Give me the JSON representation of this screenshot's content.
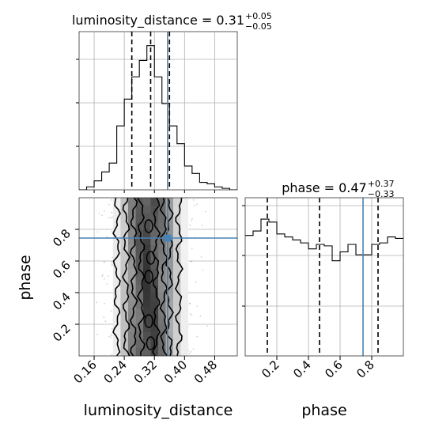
{
  "chart_data": {
    "type": "corner",
    "parameters": [
      "luminosity_distance",
      "phase"
    ],
    "titles": [
      {
        "base": "luminosity_distance = 0.31",
        "sup": "+0.05",
        "sub": "−0.05"
      },
      {
        "base": "phase = 0.47",
        "sup": "+0.37",
        "sub": "−0.33"
      }
    ],
    "axis_labels": {
      "x": [
        "luminosity_distance",
        "phase"
      ],
      "y": [
        "phase"
      ]
    },
    "ranges": {
      "luminosity_distance": [
        0.12,
        0.54
      ],
      "phase": [
        0.0,
        1.0
      ]
    },
    "ticks": {
      "luminosity_distance": [
        "0.16",
        "0.24",
        "0.32",
        "0.40",
        "0.48"
      ],
      "phase": [
        "0.2",
        "0.4",
        "0.6",
        "0.8"
      ]
    },
    "truth": {
      "luminosity_distance": 0.355,
      "phase": 0.745,
      "color": "#4682b4"
    },
    "quantiles": {
      "luminosity_distance": [
        0.26,
        0.31,
        0.36
      ],
      "phase": [
        0.14,
        0.47,
        0.84
      ]
    },
    "hist_luminosity_distance": {
      "bin_edges": [
        0.12,
        0.14,
        0.16,
        0.18,
        0.2,
        0.22,
        0.24,
        0.26,
        0.28,
        0.3,
        0.32,
        0.34,
        0.36,
        0.38,
        0.4,
        0.42,
        0.44,
        0.46,
        0.48,
        0.5,
        0.52,
        0.54
      ],
      "counts": [
        0.0,
        0.02,
        0.06,
        0.12,
        0.18,
        0.43,
        0.61,
        0.76,
        0.87,
        0.97,
        0.76,
        0.58,
        0.43,
        0.31,
        0.16,
        0.11,
        0.05,
        0.04,
        0.02,
        0.01,
        0.0
      ]
    },
    "hist_phase": {
      "bin_edges": [
        0.0,
        0.05,
        0.1,
        0.15,
        0.2,
        0.25,
        0.3,
        0.35,
        0.4,
        0.45,
        0.5,
        0.55,
        0.6,
        0.65,
        0.7,
        0.75,
        0.8,
        0.85,
        0.9,
        0.95,
        1.0
      ],
      "counts": [
        0.81,
        0.84,
        0.92,
        0.9,
        0.82,
        0.8,
        0.78,
        0.76,
        0.72,
        0.75,
        0.74,
        0.64,
        0.7,
        0.75,
        0.68,
        0.68,
        0.75,
        0.76,
        0.8,
        0.79
      ]
    },
    "grid": true,
    "contour_levels": 4
  }
}
